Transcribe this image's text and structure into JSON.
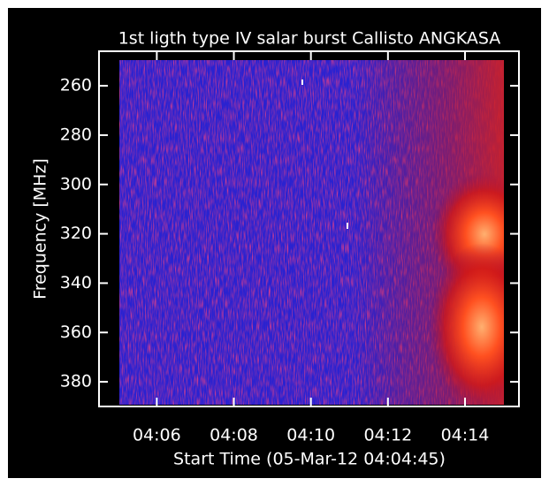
{
  "chart_data": {
    "type": "spectrogram",
    "title": "1st ligth type IV salar burst Callisto ANGKASA",
    "xlabel": "Start Time (05-Mar-12 04:04:45)",
    "ylabel": "Frequency [MHz]",
    "xlim": [
      4.5,
      15.4
    ],
    "xticks": [
      {
        "value": 6,
        "label": "04:06"
      },
      {
        "value": 8,
        "label": "04:08"
      },
      {
        "value": 10,
        "label": "04:10"
      },
      {
        "value": 12,
        "label": "04:12"
      },
      {
        "value": 14,
        "label": "04:14"
      }
    ],
    "ylim": [
      246,
      390
    ],
    "yticks": [
      260,
      280,
      300,
      320,
      340,
      360,
      380
    ]
  }
}
